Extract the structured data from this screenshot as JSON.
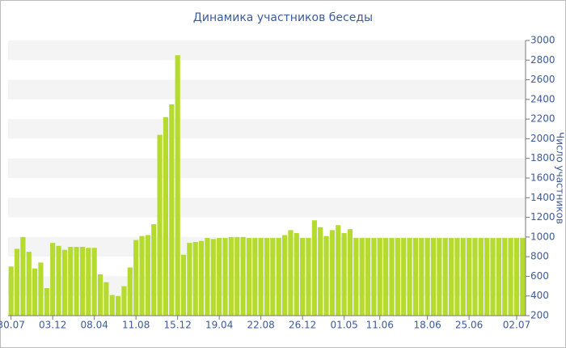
{
  "chart_data": {
    "type": "bar",
    "title": "Динамика участников беседы",
    "y_label": "Число участников",
    "categories": [
      "30.07",
      null,
      null,
      null,
      null,
      null,
      null,
      "03.12",
      null,
      null,
      null,
      null,
      null,
      null,
      "08.04",
      null,
      null,
      null,
      null,
      null,
      null,
      "11.08",
      null,
      null,
      null,
      null,
      null,
      null,
      "15.12",
      null,
      null,
      null,
      null,
      null,
      null,
      "19.04",
      null,
      null,
      null,
      null,
      null,
      null,
      "22.08",
      null,
      null,
      null,
      null,
      null,
      null,
      "26.12",
      null,
      null,
      null,
      null,
      null,
      null,
      "01.05",
      null,
      null,
      null,
      null,
      null,
      "11.06",
      null,
      null,
      null,
      null,
      null,
      null,
      null,
      "18.06",
      null,
      null,
      null,
      null,
      null,
      null,
      "25.06",
      null,
      null,
      null,
      null,
      null,
      null,
      null,
      "02.07",
      null
    ],
    "values": [
      700,
      880,
      1000,
      850,
      680,
      740,
      480,
      940,
      910,
      870,
      900,
      900,
      900,
      890,
      890,
      620,
      540,
      410,
      400,
      500,
      690,
      970,
      1010,
      1020,
      1130,
      2040,
      2220,
      2350,
      2850,
      820,
      940,
      950,
      960,
      990,
      980,
      990,
      990,
      1000,
      1000,
      1000,
      990,
      990,
      990,
      990,
      990,
      990,
      1020,
      1070,
      1040,
      990,
      990,
      1170,
      1100,
      1010,
      1070,
      1120,
      1040,
      1080,
      990,
      990,
      990,
      990,
      990,
      990,
      990,
      990,
      990,
      990,
      990,
      990,
      990,
      990,
      990,
      990,
      990,
      990,
      990,
      990,
      990,
      990,
      990,
      990,
      990,
      990,
      990,
      990,
      990
    ],
    "color": "#b6db2f",
    "ylim": [
      200,
      3000
    ],
    "yticks": [
      200,
      400,
      600,
      800,
      1000,
      1200,
      1400,
      1600,
      1800,
      2000,
      2200,
      2400,
      2600,
      2800,
      3000
    ],
    "grid": "bands",
    "y_axis_side": "right"
  }
}
